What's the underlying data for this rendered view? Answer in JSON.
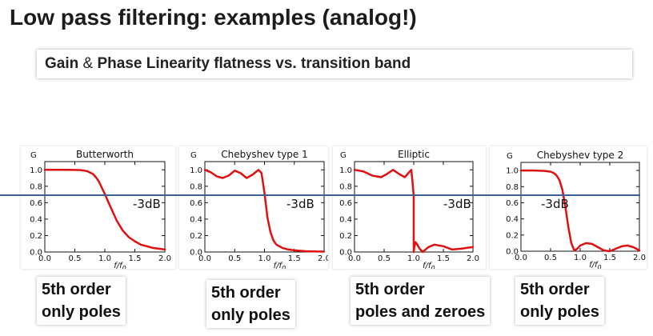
{
  "page": {
    "title": "Low pass filtering: examples (analog!)",
    "subtitle_part1": "Gain",
    "subtitle_amp": "&",
    "subtitle_part2": "Phase Linearity flatness vs. transition band"
  },
  "chart_data": [
    {
      "type": "line",
      "title": "Butterworth",
      "ylabel": "G",
      "xlabel": "f/f0",
      "xlim": [
        0,
        2
      ],
      "ylim": [
        0,
        1.1
      ],
      "xticks": [
        "0.0",
        "0.5",
        "1.0",
        "1.5",
        "2.0"
      ],
      "yticks": [
        "0.0",
        "0.2",
        "0.4",
        "0.6",
        "0.8",
        "1.0"
      ],
      "annotation": "-3dB",
      "caption_line1": "5th  order",
      "caption_line2": "only poles",
      "series": [
        {
          "x": [
            0,
            0.2,
            0.4,
            0.6,
            0.7,
            0.8,
            0.85,
            0.9,
            0.95,
            1.0,
            1.05,
            1.1,
            1.2,
            1.3,
            1.4,
            1.5,
            1.6,
            1.7,
            1.8,
            1.9,
            2.0
          ],
          "y": [
            1.0,
            1.0,
            1.0,
            0.997,
            0.985,
            0.95,
            0.91,
            0.86,
            0.78,
            0.707,
            0.62,
            0.54,
            0.38,
            0.26,
            0.18,
            0.13,
            0.09,
            0.07,
            0.05,
            0.04,
            0.03
          ]
        }
      ]
    },
    {
      "type": "line",
      "title": "Chebyshev type 1",
      "ylabel": "G",
      "xlabel": "f/f0",
      "xlim": [
        0,
        2
      ],
      "ylim": [
        0,
        1.1
      ],
      "xticks": [
        "0.0",
        "0.5",
        "1.0",
        "1.5",
        "2.0"
      ],
      "yticks": [
        "0.0",
        "0.2",
        "0.4",
        "0.6",
        "0.8",
        "1.0"
      ],
      "annotation": "-3dB",
      "caption_line1": "5th  order",
      "caption_line2": "only poles",
      "series": [
        {
          "x": [
            0,
            0.1,
            0.2,
            0.3,
            0.4,
            0.5,
            0.6,
            0.7,
            0.8,
            0.9,
            0.95,
            1.0,
            1.05,
            1.1,
            1.15,
            1.2,
            1.3,
            1.4,
            1.5,
            1.6,
            1.7,
            1.8,
            1.9,
            2.0
          ],
          "y": [
            1.0,
            0.97,
            0.92,
            0.9,
            0.93,
            0.99,
            0.96,
            0.9,
            0.94,
            1.0,
            0.96,
            0.72,
            0.42,
            0.24,
            0.14,
            0.09,
            0.05,
            0.03,
            0.02,
            0.015,
            0.01,
            0.008,
            0.006,
            0.005
          ]
        }
      ]
    },
    {
      "type": "line",
      "title": "Elliptic",
      "ylabel": "G",
      "xlabel": "f/f0",
      "xlim": [
        0,
        2
      ],
      "ylim": [
        0,
        1.1
      ],
      "xticks": [
        "0.0",
        "0.5",
        "1.0",
        "1.5",
        "2.0"
      ],
      "yticks": [
        "0.0",
        "0.2",
        "0.4",
        "0.6",
        "0.8",
        "1.0"
      ],
      "annotation": "-3dB",
      "caption_line1": "5th  order",
      "caption_line2": "poles and zeroes",
      "series": [
        {
          "x": [
            0,
            0.15,
            0.3,
            0.45,
            0.55,
            0.65,
            0.75,
            0.85,
            0.92,
            0.96,
            0.98,
            1.0,
            1.0,
            1.01,
            1.03,
            1.05,
            1.1,
            1.15,
            1.25,
            1.35,
            1.5,
            1.65,
            1.8,
            2.0
          ],
          "y": [
            1.0,
            0.98,
            0.93,
            0.91,
            0.95,
            1.0,
            0.95,
            0.91,
            0.97,
            1.0,
            0.85,
            0.68,
            0.0,
            0.06,
            0.12,
            0.1,
            0.04,
            0.0,
            0.06,
            0.09,
            0.07,
            0.03,
            0.04,
            0.06
          ]
        }
      ]
    },
    {
      "type": "line",
      "title": "Chebyshev type 2",
      "ylabel": "G",
      "xlabel": "f/f0",
      "xlim": [
        0,
        2
      ],
      "ylim": [
        0,
        1.1
      ],
      "xticks": [
        "0.0",
        "0.5",
        "1.0",
        "1.5",
        "2.0"
      ],
      "yticks": [
        "0.0",
        "0.2",
        "0.4",
        "0.6",
        "0.8",
        "1.0"
      ],
      "annotation": "-3dB",
      "caption_line1": "5th  order",
      "caption_line2": "only poles",
      "series": [
        {
          "x": [
            0,
            0.2,
            0.4,
            0.5,
            0.55,
            0.6,
            0.65,
            0.7,
            0.75,
            0.8,
            0.85,
            0.9,
            0.95,
            1.0,
            1.1,
            1.2,
            1.3,
            1.4,
            1.5,
            1.6,
            1.7,
            1.8,
            1.9,
            2.0
          ],
          "y": [
            1.0,
            1.0,
            0.995,
            0.985,
            0.97,
            0.94,
            0.88,
            0.76,
            0.55,
            0.3,
            0.1,
            0.01,
            0.03,
            0.07,
            0.1,
            0.09,
            0.05,
            0.01,
            0.0,
            0.03,
            0.06,
            0.07,
            0.05,
            0.01
          ]
        }
      ]
    }
  ],
  "colors": {
    "curve": "#e01010",
    "reference_line": "#3e5f8e"
  }
}
